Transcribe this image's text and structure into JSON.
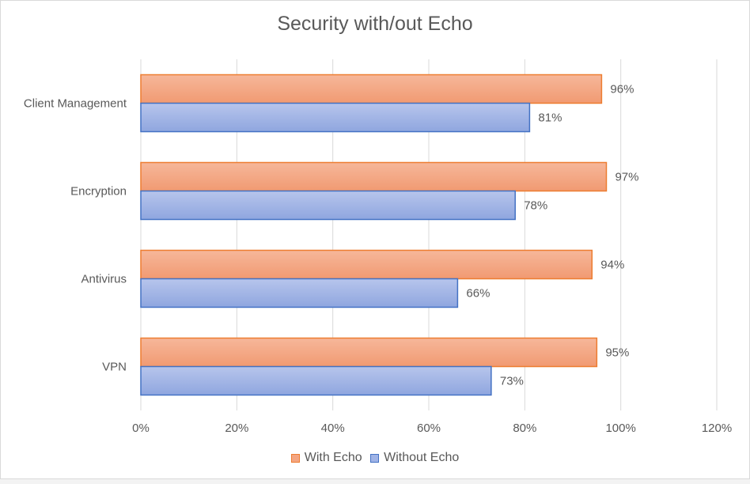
{
  "chart_data": {
    "type": "bar",
    "orientation": "horizontal",
    "title": "Security with/out Echo",
    "categories": [
      "Client Management",
      "Encryption",
      "Antivirus",
      "VPN"
    ],
    "series": [
      {
        "name": "With Echo",
        "values": [
          96,
          97,
          94,
          95
        ],
        "color": "#f4a582",
        "border": "#ed7d31"
      },
      {
        "name": "Without Echo",
        "values": [
          81,
          78,
          66,
          73
        ],
        "color": "#9fb3e6",
        "border": "#4472c4"
      }
    ],
    "data_labels": {
      "with_echo": [
        "96%",
        "97%",
        "94%",
        "95%"
      ],
      "without_echo": [
        "81%",
        "78%",
        "66%",
        "73%"
      ]
    },
    "xlim": [
      0,
      120
    ],
    "x_ticks": [
      "0%",
      "20%",
      "40%",
      "60%",
      "80%",
      "100%",
      "120%"
    ],
    "grid": true,
    "legend_position": "bottom"
  }
}
